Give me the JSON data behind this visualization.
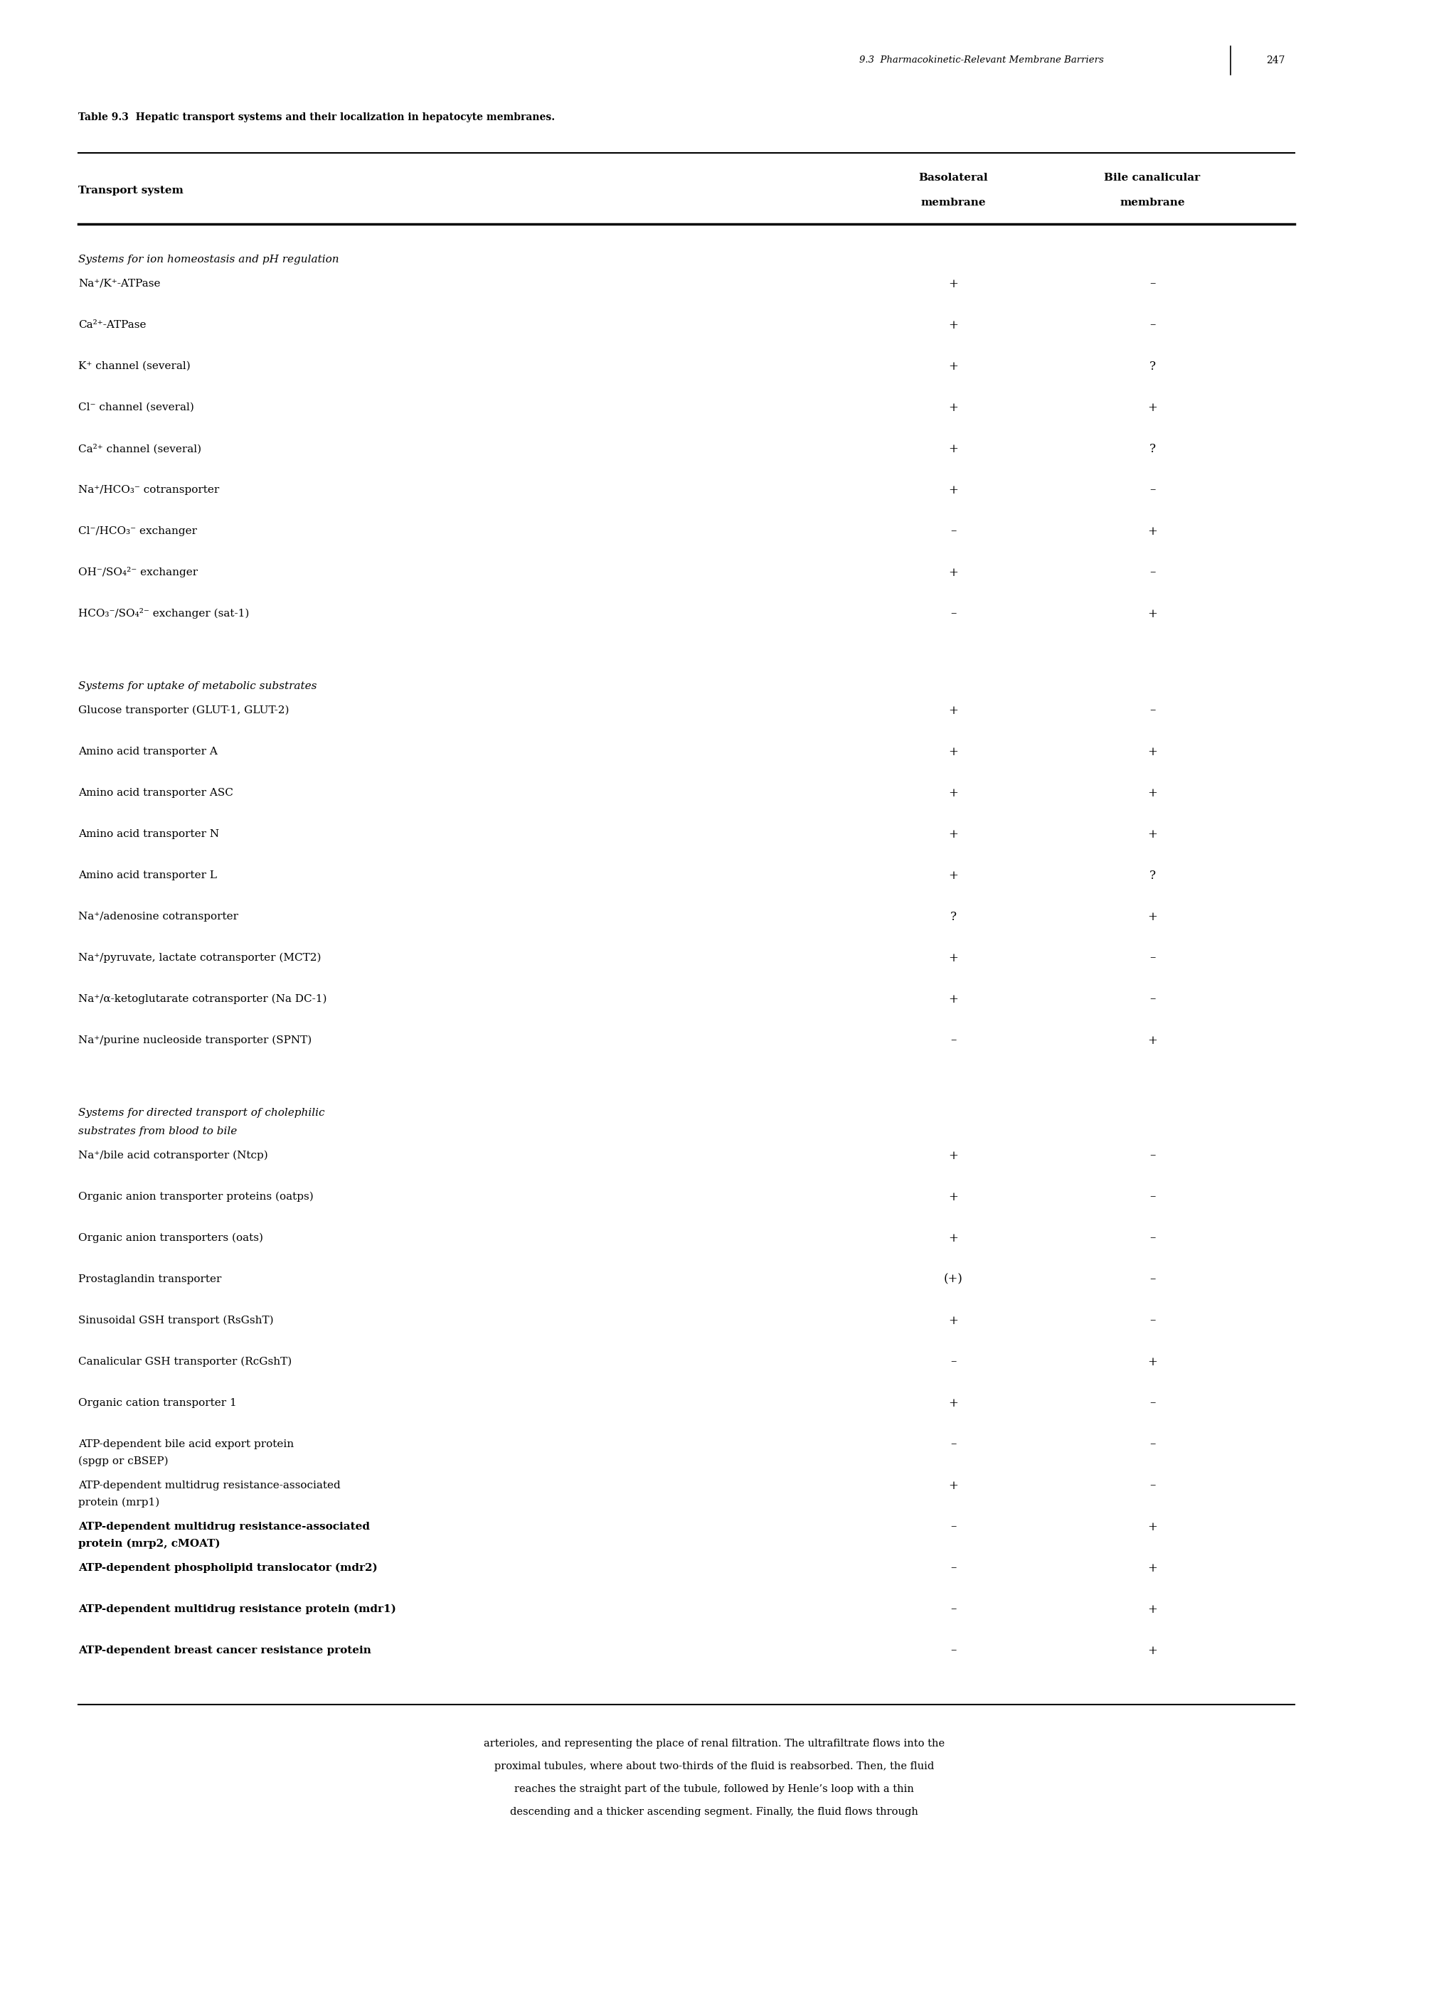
{
  "page_header": "9.3  Pharmacokinetic-Relevant Membrane Barriers",
  "page_number": "247",
  "table_title": "Table 9.3  Hepatic transport systems and their localization in hepatocyte membranes.",
  "col_headers": [
    "Transport system",
    "Basolateral\nmembrane",
    "Bile canalicular\nmembrane"
  ],
  "sections": [
    {
      "section_header": "Systems for ion homeostasis and pH regulation",
      "rows": [
        [
          "Na⁺/K⁺-ATPase",
          "+",
          "–"
        ],
        [
          "Ca²⁺-ATPase",
          "+",
          "–"
        ],
        [
          "K⁺ channel (several)",
          "+",
          "?"
        ],
        [
          "Cl⁻ channel (several)",
          "+",
          "+"
        ],
        [
          "Ca²⁺ channel (several)",
          "+",
          "?"
        ],
        [
          "Na⁺/HCO₃⁻ cotransporter",
          "+",
          "–"
        ],
        [
          "Cl⁻/HCO₃⁻ exchanger",
          "–",
          "+"
        ],
        [
          "OH⁻/SO₄²⁻ exchanger",
          "+",
          "–"
        ],
        [
          "HCO₃⁻/SO₄²⁻ exchanger (sat-1)",
          "–",
          "+"
        ]
      ]
    },
    {
      "section_header": "Systems for uptake of metabolic substrates",
      "rows": [
        [
          "Glucose transporter (GLUT-1, GLUT-2)",
          "+",
          "–"
        ],
        [
          "Amino acid transporter A",
          "+",
          "+"
        ],
        [
          "Amino acid transporter ASC",
          "+",
          "+"
        ],
        [
          "Amino acid transporter N",
          "+",
          "+"
        ],
        [
          "Amino acid transporter L",
          "+",
          "?"
        ],
        [
          "Na⁺/adenosine cotransporter",
          "?",
          "+"
        ],
        [
          "Na⁺/pyruvate, lactate cotransporter (MCT2)",
          "+",
          "–"
        ],
        [
          "Na⁺/α-ketoglutarate cotransporter (Na DC-1)",
          "+",
          "–"
        ],
        [
          "Na⁺/purine nucleoside transporter (SPNT)",
          "–",
          "+"
        ]
      ]
    },
    {
      "section_header": "Systems for directed transport of cholephilic\nsubstrates from blood to bile",
      "rows": [
        [
          "Na⁺/bile acid cotransporter (Ntcp)",
          "+",
          "–"
        ],
        [
          "Organic anion transporter proteins (oatps)",
          "+",
          "–"
        ],
        [
          "Organic anion transporters (oats)",
          "+",
          "–"
        ],
        [
          "Prostaglandin transporter",
          "(+)",
          "–"
        ],
        [
          "Sinusoidal GSH transport (RsGshT)",
          "+",
          "–"
        ],
        [
          "Canalicular GSH transporter (RcGshT)",
          "–",
          "+"
        ],
        [
          "Organic cation transporter 1",
          "+",
          "–"
        ],
        [
          "ATP-dependent bile acid export protein\n(spgp or cBSEP)",
          "–",
          "–"
        ],
        [
          "ATP-dependent multidrug resistance-associated\nprotein (mrp1)",
          "+",
          "–"
        ],
        [
          "ATP-dependent multidrug resistance-associated\nprotein (mrp2, cMOAT)",
          "–",
          "+"
        ],
        [
          "ATP-dependent phospholipid translocator (mdr2)",
          "–",
          "+"
        ],
        [
          "ATP-dependent multidrug resistance protein (mdr1)",
          "–",
          "+"
        ],
        [
          "ATP-dependent breast cancer resistance protein",
          "–",
          "+"
        ]
      ]
    }
  ],
  "footer_text": "arterioles, and representing the place of renal filtration. The ultrafiltrate flows into the\nproximal tubules, where about two-thirds of the fluid is reabsorbed. Then, the fluid\nreaches the straight part of the tubule, followed by Henle’s loop with a thin\ndescending and a thicker ascending segment. Finally, the fluid flows through",
  "bg_color": "#ffffff",
  "text_color": "#000000",
  "font_size_body": 11,
  "font_size_header": 11,
  "font_size_title": 11,
  "font_size_page": 10
}
